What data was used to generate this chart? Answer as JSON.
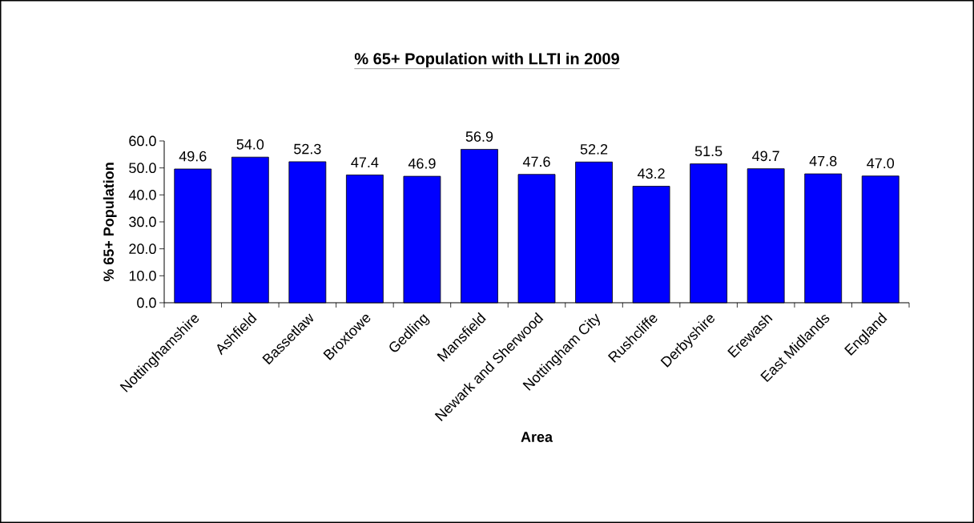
{
  "chart_data": {
    "type": "bar",
    "title": "% 65+ Population with LLTI in 2009",
    "xlabel": "Area",
    "ylabel": "% 65+ Population",
    "categories": [
      "Nottinghamshire",
      "Ashfield",
      "Bassetlaw",
      "Broxtowe",
      "Gedling",
      "Mansfield",
      "Newark and Sherwood",
      "Nottingham City",
      "Rushcliffe",
      "Derbyshire",
      "Erewash",
      "East Midlands",
      "England"
    ],
    "values": [
      49.6,
      54.0,
      52.3,
      47.4,
      46.9,
      56.9,
      47.6,
      52.2,
      43.2,
      51.5,
      49.7,
      47.8,
      47.0
    ],
    "value_labels": [
      "49.6",
      "54.0",
      "52.3",
      "47.4",
      "46.9",
      "56.9",
      "47.6",
      "52.2",
      "43.2",
      "51.5",
      "49.7",
      "47.8",
      "47.0"
    ],
    "color": "#0000ff",
    "ylim": [
      0,
      60
    ],
    "yticks": [
      {
        "value": 0,
        "label": "0.0"
      },
      {
        "value": 10,
        "label": "10.0"
      },
      {
        "value": 20,
        "label": "20.0"
      },
      {
        "value": 30,
        "label": "30.0"
      },
      {
        "value": 40,
        "label": "40.0"
      },
      {
        "value": 50,
        "label": "50.0"
      },
      {
        "value": 60,
        "label": "60.0"
      }
    ],
    "grid": false
  }
}
